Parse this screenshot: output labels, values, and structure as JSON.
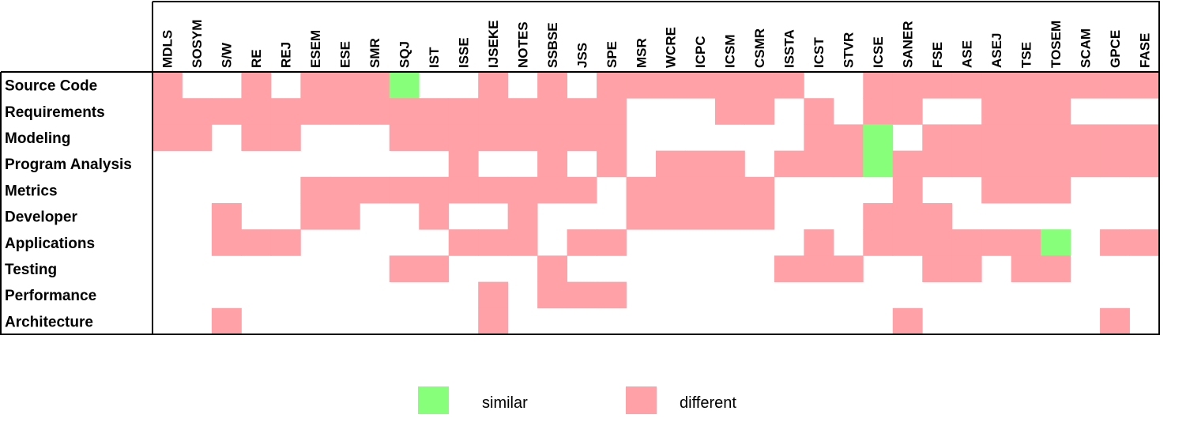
{
  "chart_data": {
    "type": "heatmap",
    "title": "",
    "xlabel": "",
    "ylabel": "",
    "columns": [
      "MDLS",
      "SOSYM",
      "S/W",
      "RE",
      "REJ",
      "ESEM",
      "ESE",
      "SMR",
      "SQJ",
      "IST",
      "ISSE",
      "IJSEKE",
      "NOTES",
      "SSBSE",
      "JSS",
      "SPE",
      "MSR",
      "WCRE",
      "ICPC",
      "ICSM",
      "CSMR",
      "ISSTA",
      "ICST",
      "STVR",
      "ICSE",
      "SANER",
      "FSE",
      "ASE",
      "ASEJ",
      "TSE",
      "TOSEM",
      "SCAM",
      "GPCE",
      "FASE"
    ],
    "rows": [
      "Source Code",
      "Requirements",
      "Modeling",
      "Program Analysis",
      "Metrics",
      "Developer",
      "Applications",
      "Testing",
      "Performance",
      "Architecture"
    ],
    "value_codes": {
      "0": "none",
      "1": "different",
      "2": "similar"
    },
    "values": [
      [
        1,
        0,
        0,
        1,
        0,
        1,
        1,
        1,
        2,
        0,
        0,
        1,
        0,
        1,
        0,
        1,
        1,
        1,
        1,
        1,
        1,
        1,
        0,
        0,
        1,
        1,
        1,
        1,
        1,
        1,
        1,
        1,
        1,
        1
      ],
      [
        1,
        1,
        1,
        1,
        1,
        1,
        1,
        1,
        1,
        1,
        1,
        1,
        1,
        1,
        1,
        1,
        0,
        0,
        0,
        1,
        1,
        0,
        1,
        0,
        1,
        1,
        0,
        0,
        1,
        1,
        1,
        0,
        0,
        0
      ],
      [
        1,
        1,
        0,
        1,
        1,
        0,
        0,
        0,
        1,
        1,
        1,
        1,
        1,
        1,
        1,
        1,
        0,
        0,
        0,
        0,
        0,
        0,
        1,
        1,
        2,
        0,
        1,
        1,
        1,
        1,
        1,
        1,
        1,
        1
      ],
      [
        0,
        0,
        0,
        0,
        0,
        0,
        0,
        0,
        0,
        0,
        1,
        0,
        0,
        1,
        0,
        1,
        0,
        1,
        1,
        1,
        0,
        1,
        1,
        1,
        2,
        1,
        1,
        1,
        1,
        1,
        1,
        1,
        1,
        1
      ],
      [
        0,
        0,
        0,
        0,
        0,
        1,
        1,
        1,
        1,
        1,
        1,
        1,
        1,
        1,
        1,
        0,
        1,
        1,
        1,
        1,
        1,
        0,
        0,
        0,
        0,
        1,
        0,
        0,
        1,
        1,
        1,
        0,
        0,
        0
      ],
      [
        0,
        0,
        1,
        0,
        0,
        1,
        1,
        0,
        0,
        1,
        0,
        0,
        1,
        0,
        0,
        0,
        1,
        1,
        1,
        1,
        1,
        0,
        0,
        0,
        1,
        1,
        1,
        0,
        0,
        0,
        0,
        0,
        0,
        0
      ],
      [
        0,
        0,
        1,
        1,
        1,
        0,
        0,
        0,
        0,
        0,
        1,
        1,
        1,
        0,
        1,
        1,
        0,
        0,
        0,
        0,
        0,
        0,
        1,
        0,
        1,
        1,
        1,
        1,
        1,
        1,
        2,
        0,
        1,
        1
      ],
      [
        0,
        0,
        0,
        0,
        0,
        0,
        0,
        0,
        1,
        1,
        0,
        0,
        0,
        1,
        0,
        0,
        0,
        0,
        0,
        0,
        0,
        1,
        1,
        1,
        0,
        0,
        1,
        1,
        0,
        1,
        1,
        0,
        0,
        0
      ],
      [
        0,
        0,
        0,
        0,
        0,
        0,
        0,
        0,
        0,
        0,
        0,
        1,
        0,
        1,
        1,
        1,
        0,
        0,
        0,
        0,
        0,
        0,
        0,
        0,
        0,
        0,
        0,
        0,
        0,
        0,
        0,
        0,
        0,
        0
      ],
      [
        0,
        0,
        1,
        0,
        0,
        0,
        0,
        0,
        0,
        0,
        0,
        1,
        0,
        0,
        0,
        0,
        0,
        0,
        0,
        0,
        0,
        0,
        0,
        0,
        0,
        1,
        0,
        0,
        0,
        0,
        0,
        0,
        1,
        0
      ]
    ],
    "colors": {
      "similar": "#88ff7a",
      "different": "#ffa1a6",
      "none": "#ffffff",
      "border": "#000000"
    },
    "legend": [
      {
        "key": "similar",
        "label": "similar",
        "color": "#88ff7a"
      },
      {
        "key": "different",
        "label": "different",
        "color": "#ffa1a6"
      }
    ],
    "legend_position": "bottom-center"
  }
}
